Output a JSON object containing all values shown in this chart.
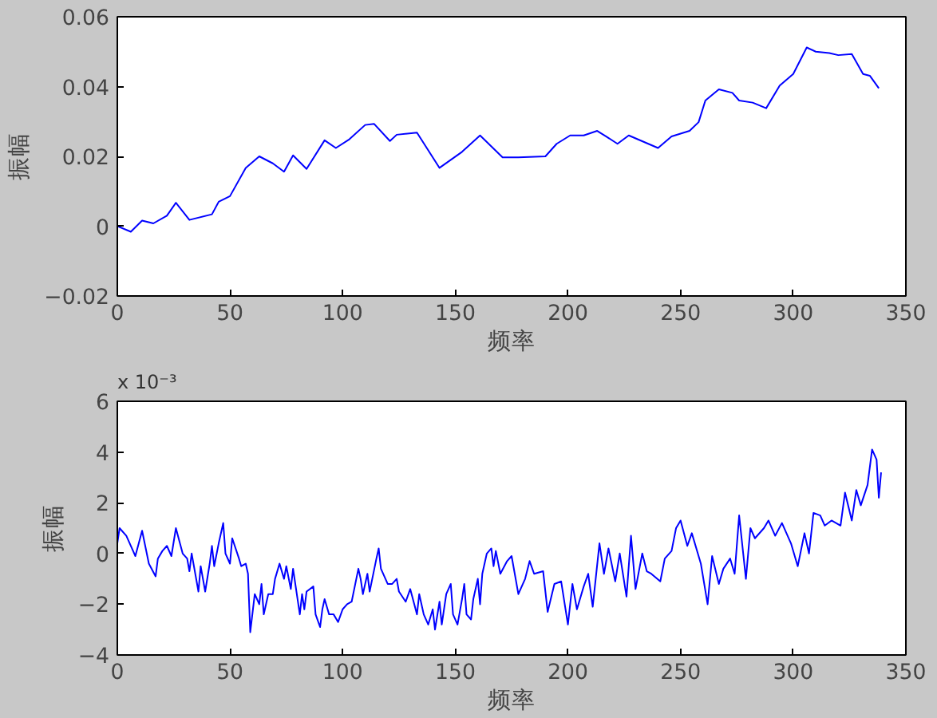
{
  "chart_data": [
    {
      "type": "line",
      "xlabel": "频率",
      "ylabel": "振幅",
      "grid": false,
      "line_style": "solid",
      "marker": "none",
      "xlim": [
        0,
        350
      ],
      "xticks": [
        0,
        50,
        100,
        150,
        200,
        250,
        300,
        350
      ],
      "ylim": [
        -0.02,
        0.06
      ],
      "yticks": [
        -0.02,
        0,
        0.02,
        0.04,
        0.06
      ],
      "series": [
        {
          "color": "#0000ff",
          "x": [
            0,
            6,
            11,
            16,
            22,
            26,
            32,
            42,
            45,
            50,
            57,
            63,
            69,
            74,
            78,
            84,
            92,
            97,
            103,
            110,
            114,
            121,
            124,
            133,
            143,
            153,
            161,
            171,
            178,
            190,
            195,
            201,
            207,
            213,
            217,
            222,
            227,
            240,
            246,
            254,
            258,
            261,
            267,
            273,
            276,
            282,
            288,
            294,
            300,
            306,
            310,
            316,
            320,
            326,
            331,
            334,
            338
          ],
          "values": [
            0,
            -0.0016,
            0.0016,
            0.0008,
            0.003,
            0.0067,
            0.0018,
            0.0034,
            0.007,
            0.0086,
            0.0167,
            0.02,
            0.018,
            0.0156,
            0.0203,
            0.0164,
            0.0246,
            0.0224,
            0.0249,
            0.029,
            0.0293,
            0.0244,
            0.0262,
            0.0268,
            0.0167,
            0.0213,
            0.026,
            0.0197,
            0.0197,
            0.02,
            0.0236,
            0.026,
            0.026,
            0.0273,
            0.0257,
            0.0236,
            0.026,
            0.0224,
            0.0257,
            0.0273,
            0.0298,
            0.036,
            0.0392,
            0.0382,
            0.036,
            0.0354,
            0.0338,
            0.0403,
            0.0436,
            0.0512,
            0.05,
            0.0496,
            0.049,
            0.0493,
            0.0436,
            0.0431,
            0.0395
          ]
        }
      ]
    },
    {
      "type": "line",
      "xlabel": "频率",
      "ylabel": "振幅",
      "grid": false,
      "line_style": "solid",
      "marker": "none",
      "annotations": [
        "x 10⁻³"
      ],
      "xlim": [
        0,
        350
      ],
      "xticks": [
        0,
        50,
        100,
        150,
        200,
        250,
        300,
        350
      ],
      "ylim": [
        -4,
        6
      ],
      "yticks": [
        -4,
        -2,
        0,
        2,
        4,
        6
      ],
      "series": [
        {
          "color": "#0000ff",
          "x": [
            0,
            1,
            4,
            7,
            8,
            11,
            14,
            17,
            18,
            20,
            22,
            24,
            26,
            29,
            31,
            32,
            33,
            36,
            37,
            39,
            41,
            42,
            43,
            45,
            47,
            48,
            50,
            51,
            54,
            55,
            57,
            58,
            59,
            61,
            63,
            64,
            65,
            67,
            69,
            70,
            72,
            74,
            75,
            77,
            78,
            81,
            82,
            83,
            84,
            87,
            88,
            90,
            91,
            92,
            94,
            96,
            98,
            100,
            102,
            104,
            107,
            108,
            109,
            111,
            112,
            115,
            116,
            117,
            120,
            122,
            124,
            125,
            128,
            130,
            133,
            134,
            136,
            138,
            140,
            141,
            143,
            144,
            146,
            148,
            149,
            151,
            153,
            154,
            155,
            157,
            158,
            160,
            161,
            162,
            164,
            166,
            167,
            168,
            170,
            173,
            175,
            178,
            181,
            183,
            185,
            189,
            191,
            194,
            197,
            200,
            202,
            204,
            207,
            209,
            211,
            214,
            216,
            218,
            221,
            223,
            226,
            228,
            230,
            233,
            235,
            237,
            241,
            243,
            246,
            248,
            250,
            253,
            255,
            259,
            262,
            264,
            267,
            269,
            272,
            274,
            276,
            279,
            281,
            283,
            287,
            289,
            292,
            295,
            299,
            302,
            305,
            307,
            309,
            312,
            314,
            317,
            321,
            323,
            326,
            328,
            330,
            333,
            335,
            337,
            338,
            339
          ],
          "values": [
            0.4,
            1.0,
            0.7,
            0.1,
            -0.1,
            0.9,
            -0.4,
            -0.9,
            -0.2,
            0.1,
            0.3,
            -0.1,
            1.0,
            0.0,
            -0.2,
            -0.7,
            0.0,
            -1.5,
            -0.5,
            -1.5,
            -0.4,
            0.3,
            -0.5,
            0.4,
            1.2,
            0.0,
            -0.4,
            0.6,
            -0.2,
            -0.5,
            -0.4,
            -0.8,
            -3.1,
            -1.6,
            -2.0,
            -1.2,
            -2.4,
            -1.6,
            -1.6,
            -1.0,
            -0.4,
            -1.0,
            -0.5,
            -1.4,
            -0.6,
            -2.4,
            -1.6,
            -2.2,
            -1.5,
            -1.3,
            -2.4,
            -2.9,
            -2.2,
            -1.8,
            -2.4,
            -2.4,
            -2.7,
            -2.2,
            -2.0,
            -1.9,
            -0.6,
            -1.0,
            -1.6,
            -0.8,
            -1.5,
            -0.2,
            0.2,
            -0.6,
            -1.2,
            -1.2,
            -1.0,
            -1.5,
            -1.9,
            -1.4,
            -2.4,
            -1.6,
            -2.4,
            -2.8,
            -2.2,
            -3.0,
            -1.9,
            -2.8,
            -1.6,
            -1.2,
            -2.4,
            -2.8,
            -1.8,
            -1.2,
            -2.4,
            -2.6,
            -1.8,
            -1.0,
            -2.0,
            -0.8,
            0.0,
            0.2,
            -0.5,
            0.1,
            -0.8,
            -0.3,
            -0.1,
            -1.6,
            -1.0,
            -0.3,
            -0.8,
            -0.7,
            -2.3,
            -1.2,
            -1.1,
            -2.8,
            -1.2,
            -2.2,
            -1.3,
            -0.8,
            -2.1,
            0.4,
            -0.8,
            0.2,
            -1.1,
            0.0,
            -1.7,
            0.7,
            -1.4,
            0.0,
            -0.7,
            -0.8,
            -1.1,
            -0.2,
            0.1,
            1.0,
            1.3,
            0.3,
            0.8,
            -0.4,
            -2.0,
            -0.1,
            -1.2,
            -0.6,
            -0.2,
            -0.8,
            1.5,
            -1.0,
            1.0,
            0.6,
            1.0,
            1.3,
            0.7,
            1.2,
            0.4,
            -0.5,
            0.8,
            0.0,
            1.6,
            1.5,
            1.1,
            1.3,
            1.1,
            2.4,
            1.3,
            2.5,
            1.9,
            2.7,
            4.1,
            3.7,
            2.2,
            3.2
          ]
        }
      ]
    }
  ]
}
